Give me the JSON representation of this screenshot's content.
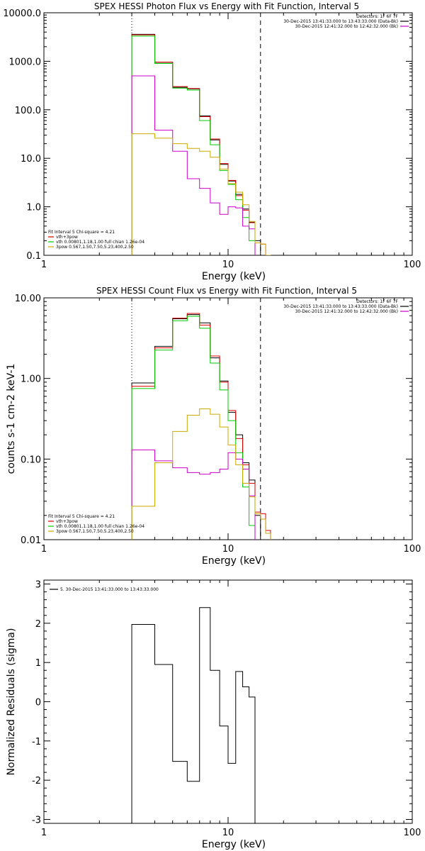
{
  "chart_data": [
    {
      "type": "line",
      "title": "SPEX HESSI Photon Flux vs Energy with Fit Function, Interval 5",
      "xlabel": "Energy (keV)",
      "ylabel": "",
      "xscale": "log",
      "yscale": "log",
      "xlim": [
        1,
        100
      ],
      "ylim": [
        0.1,
        10000
      ],
      "xticks": [
        1,
        10,
        100
      ],
      "xtick_labels": [
        "1",
        "10",
        "100"
      ],
      "yticks": [
        0.1,
        1,
        10,
        100,
        1000,
        10000
      ],
      "ytick_labels": [
        "0.1",
        "1.0",
        "10.0",
        "100.0",
        "1000.0",
        "10000.0"
      ],
      "vlines": [
        {
          "x": 3.0,
          "style": "dotted"
        },
        {
          "x": 15.0,
          "style": "dashed"
        }
      ],
      "edges": [
        3.0,
        4.0,
        5.0,
        6.0,
        7.0,
        8.0,
        9.0,
        10.0,
        11.0,
        12.0,
        13.0,
        14.0,
        15.0,
        16.0,
        17.0,
        18.0
      ],
      "series": [
        {
          "color": "#000000",
          "values": [
            3600,
            950,
            290,
            270,
            75,
            24,
            7.5,
            3.4,
            1.8,
            0.9,
            0.48,
            0.2,
            null,
            null,
            null
          ]
        },
        {
          "color": "#dd0000",
          "values": [
            3500,
            960,
            300,
            275,
            72,
            25,
            7.8,
            3.5,
            1.7,
            0.85,
            0.47,
            0.18,
            0.17,
            0.1,
            null
          ]
        },
        {
          "color": "#00cc00",
          "values": [
            3300,
            900,
            280,
            255,
            60,
            19,
            5.6,
            2.9,
            1.4,
            0.6,
            0.2,
            null,
            null,
            null,
            null
          ]
        },
        {
          "color": "#cc00cc",
          "values": [
            500,
            38,
            14,
            3.8,
            2.4,
            1.2,
            0.7,
            1.0,
            0.95,
            0.4,
            0.35,
            null,
            null,
            null,
            null
          ]
        },
        {
          "color": "#ccaa00",
          "values": [
            32,
            26,
            20,
            16,
            14,
            10.5,
            6,
            3,
            2,
            1.1,
            0.5,
            0.18,
            0.17,
            0.1,
            null
          ]
        }
      ],
      "legend_header": [
        "Detectors: 1F 6F 7F",
        "30-Dec-2015 13:41:33.000 to 13:43:33.000 (Data-Bk)",
        "30-Dec-2015 12:41:32.000 to 12:42:32.000 (Bk)"
      ],
      "legend_header_colors": [
        "#000000",
        "#000000",
        "#cc00cc"
      ],
      "fit_legend": [
        "Fit Interval 5   Chi-square = 4.21",
        "vth+3pow",
        "vth 0.00801,1.18,1.00  full chian 1.26e-04",
        "3pow 0.567,1.50,7.50,5.23,400,2.50"
      ],
      "fit_legend_colors": [
        "#000000",
        "#dd0000",
        "#00cc00",
        "#ccaa00"
      ]
    },
    {
      "type": "line",
      "title": "SPEX HESSI Count Flux vs Energy with Fit Function, Interval 5",
      "xlabel": "Energy (keV)",
      "ylabel": "counts s-1 cm-2 keV-1",
      "xscale": "log",
      "yscale": "log",
      "xlim": [
        1,
        100
      ],
      "ylim": [
        0.01,
        10
      ],
      "xticks": [
        1,
        10,
        100
      ],
      "xtick_labels": [
        "1",
        "10",
        "100"
      ],
      "yticks": [
        0.01,
        0.1,
        1,
        10
      ],
      "ytick_labels": [
        "0.01",
        "0.10",
        "1.00",
        "10.00"
      ],
      "vlines": [
        {
          "x": 3.0,
          "style": "dotted"
        },
        {
          "x": 15.0,
          "style": "dashed"
        }
      ],
      "edges": [
        3.0,
        4.0,
        5.0,
        6.0,
        7.0,
        8.0,
        9.0,
        10.0,
        11.0,
        12.0,
        13.0,
        14.0,
        15.0,
        16.0,
        17.0,
        18.0
      ],
      "series": [
        {
          "color": "#000000",
          "values": [
            0.88,
            2.5,
            5.5,
            6.2,
            4.9,
            1.8,
            0.93,
            0.38,
            0.2,
            0.09,
            0.055,
            0.02,
            null,
            null,
            null
          ]
        },
        {
          "color": "#dd0000",
          "values": [
            0.8,
            2.4,
            5.6,
            6.4,
            4.6,
            1.9,
            0.9,
            0.4,
            0.18,
            0.085,
            0.05,
            0.022,
            0.021,
            0.013,
            null
          ]
        },
        {
          "color": "#00cc00",
          "values": [
            0.75,
            2.25,
            5.2,
            5.9,
            4.2,
            1.55,
            0.72,
            0.3,
            0.12,
            0.045,
            0.015,
            null,
            null,
            null,
            null
          ]
        },
        {
          "color": "#cc00cc",
          "values": [
            0.13,
            0.095,
            0.078,
            0.068,
            0.065,
            0.068,
            0.075,
            0.12,
            0.1,
            0.075,
            0.035,
            null,
            null,
            null,
            null
          ]
        },
        {
          "color": "#ccaa00",
          "values": [
            0.026,
            0.09,
            0.22,
            0.35,
            0.42,
            0.36,
            0.25,
            0.15,
            0.085,
            0.05,
            0.034,
            0.021,
            0.018,
            0.012,
            null
          ]
        }
      ],
      "legend_header": [
        "Detectors: 1F 6F 7F",
        "30-Dec-2015 13:41:33.000 to 13:43:33.000 (Data-Bk)",
        "30-Dec-2015 12:41:32.000 to 12:42:32.000 (Bk)"
      ],
      "legend_header_colors": [
        "#000000",
        "#000000",
        "#cc00cc"
      ],
      "fit_legend": [
        "Fit Interval 5   Chi-square = 4.21",
        "vth+3pow",
        "vth 0.00801,1.18,1.00  full chian 1.26e-04",
        "3pow 0.567,1.50,7.50,5.23,400,2.50"
      ],
      "fit_legend_colors": [
        "#000000",
        "#dd0000",
        "#00cc00",
        "#ccaa00"
      ]
    },
    {
      "type": "line",
      "title": "",
      "xlabel": "Energy (keV)",
      "ylabel": "Normalized Residuals (sigma)",
      "xscale": "log",
      "yscale": "linear",
      "xlim": [
        1,
        100
      ],
      "ylim": [
        -3.1,
        3.1
      ],
      "xticks": [
        1,
        10,
        100
      ],
      "xtick_labels": [
        "1",
        "10",
        "100"
      ],
      "yticks": [
        -3,
        -2,
        -1,
        0,
        1,
        2,
        3
      ],
      "ytick_labels": [
        "-3",
        "-2",
        "-1",
        "0",
        "1",
        "2",
        "3"
      ],
      "edges": [
        3.0,
        4.0,
        5.0,
        6.0,
        7.0,
        8.0,
        9.0,
        10.0,
        11.0,
        12.0,
        13.0,
        14.0,
        15.0
      ],
      "series": [
        {
          "color": "#000000",
          "values": [
            1.97,
            0.95,
            -1.52,
            -2.03,
            2.4,
            0.8,
            -0.62,
            -1.57,
            0.77,
            0.38,
            0.12,
            null
          ]
        }
      ],
      "legend": [
        "5. 30-Dec-2015 13:41:33.000 to 13:43:33.000"
      ]
    }
  ]
}
